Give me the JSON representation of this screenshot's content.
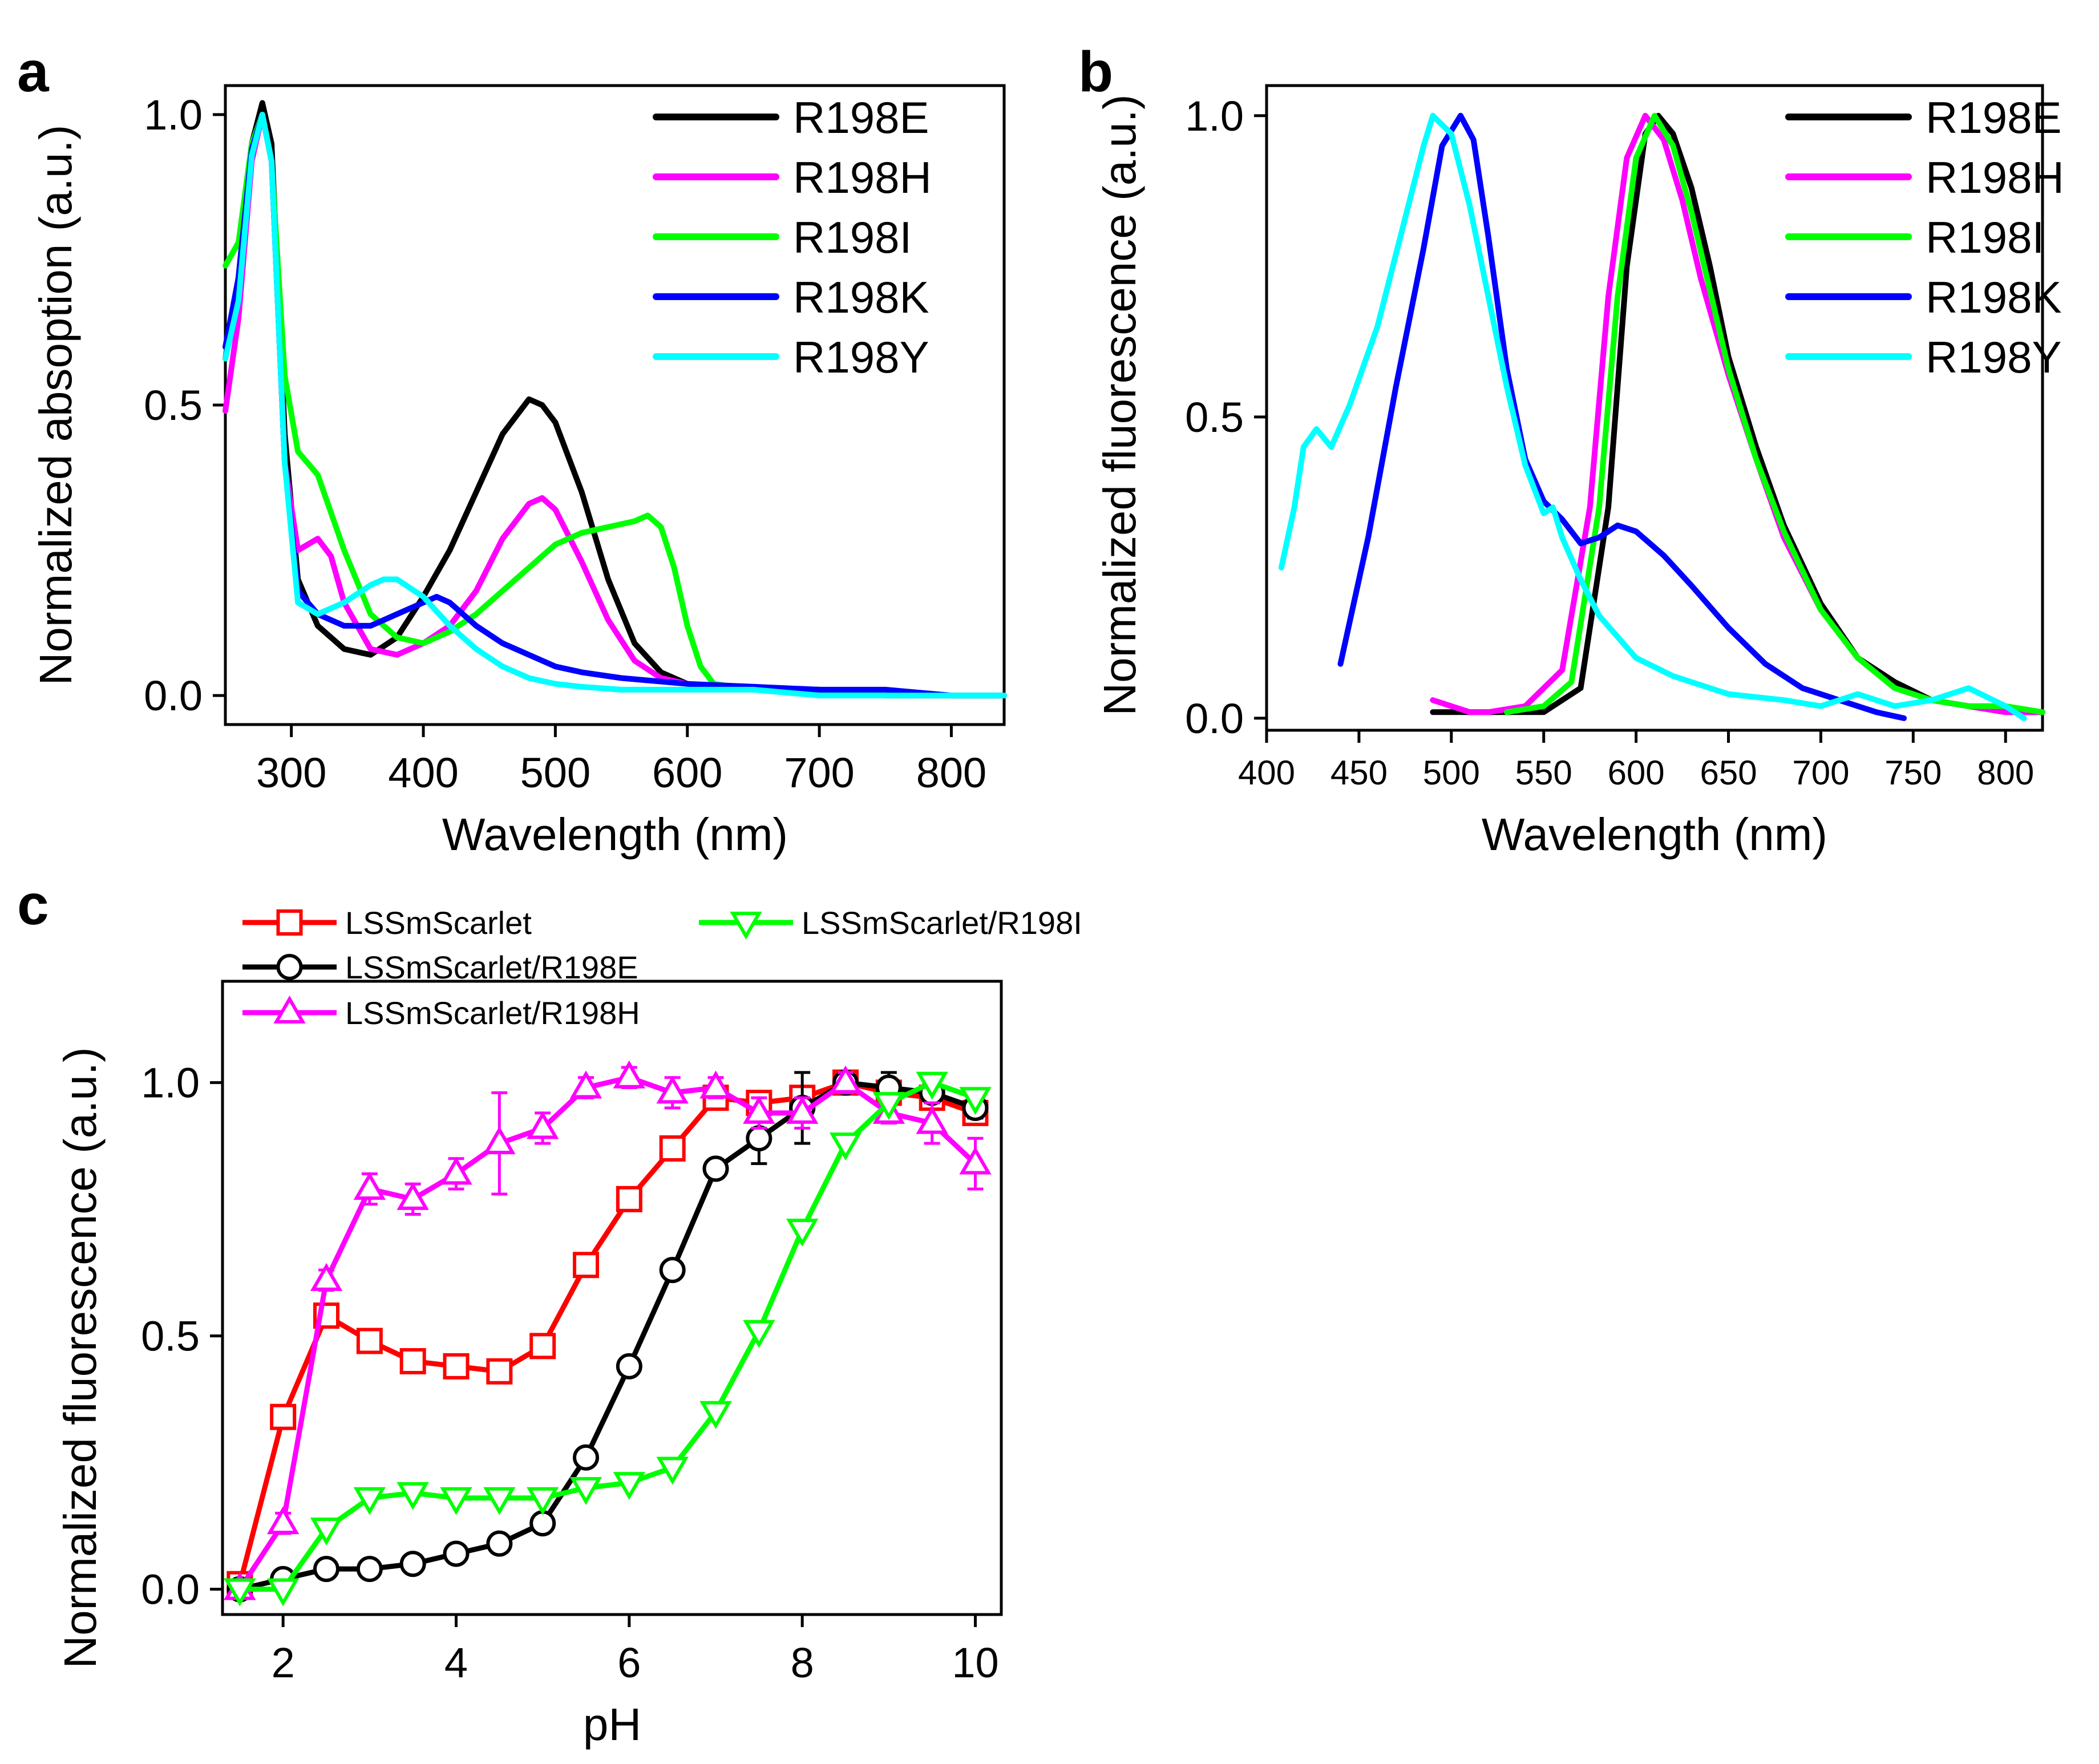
{
  "figure": {
    "panels": [
      "a",
      "b",
      "c"
    ]
  },
  "chart_data": [
    {
      "id": "a",
      "type": "line",
      "panel_label": "a",
      "xlabel": "Wavelength (nm)",
      "ylabel": "Normalized absoption (a.u.)",
      "xlim": [
        250,
        840
      ],
      "ylim": [
        -0.05,
        1.05
      ],
      "xticks": [
        300,
        400,
        500,
        600,
        700,
        800
      ],
      "yticks": [
        0.0,
        0.5,
        1.0
      ],
      "xtick_labels": [
        "300",
        "400",
        "500",
        "600",
        "700",
        "800"
      ],
      "ytick_labels": [
        "0.0",
        "0.5",
        "1.0"
      ],
      "legend_position": "top-right",
      "series": [
        {
          "name": "R198E",
          "color": "#000000",
          "x": [
            250,
            260,
            270,
            278,
            285,
            295,
            305,
            320,
            340,
            360,
            380,
            400,
            420,
            440,
            460,
            480,
            490,
            500,
            520,
            540,
            560,
            580,
            600,
            650,
            700,
            750,
            800,
            840
          ],
          "y": [
            0.58,
            0.72,
            0.95,
            1.02,
            0.95,
            0.45,
            0.2,
            0.12,
            0.08,
            0.07,
            0.1,
            0.17,
            0.25,
            0.35,
            0.45,
            0.51,
            0.5,
            0.47,
            0.35,
            0.2,
            0.09,
            0.04,
            0.02,
            0.01,
            0.01,
            0.0,
            0.0,
            0.0
          ]
        },
        {
          "name": "R198H",
          "color": "#ff00ff",
          "x": [
            250,
            260,
            270,
            278,
            285,
            295,
            305,
            320,
            330,
            340,
            360,
            380,
            400,
            420,
            440,
            460,
            480,
            490,
            500,
            520,
            540,
            560,
            580,
            600,
            650,
            700,
            750,
            800,
            840
          ],
          "y": [
            0.49,
            0.65,
            0.92,
            1.0,
            0.92,
            0.4,
            0.25,
            0.27,
            0.24,
            0.16,
            0.08,
            0.07,
            0.09,
            0.12,
            0.18,
            0.27,
            0.33,
            0.34,
            0.32,
            0.23,
            0.13,
            0.06,
            0.03,
            0.02,
            0.01,
            0.01,
            0.0,
            0.0,
            0.0
          ]
        },
        {
          "name": "R198I",
          "color": "#00ff00",
          "x": [
            250,
            260,
            270,
            278,
            285,
            295,
            305,
            320,
            340,
            360,
            380,
            400,
            420,
            440,
            460,
            480,
            500,
            520,
            540,
            560,
            570,
            580,
            590,
            600,
            610,
            620,
            650,
            700,
            750,
            800,
            840
          ],
          "y": [
            0.74,
            0.78,
            0.95,
            1.0,
            0.92,
            0.55,
            0.42,
            0.38,
            0.25,
            0.14,
            0.1,
            0.09,
            0.11,
            0.14,
            0.18,
            0.22,
            0.26,
            0.28,
            0.29,
            0.3,
            0.31,
            0.29,
            0.22,
            0.12,
            0.05,
            0.02,
            0.01,
            0.01,
            0.0,
            0.0,
            0.0
          ]
        },
        {
          "name": "R198K",
          "color": "#0000ff",
          "x": [
            250,
            260,
            270,
            278,
            285,
            295,
            305,
            320,
            340,
            360,
            380,
            400,
            410,
            420,
            440,
            460,
            480,
            500,
            520,
            550,
            600,
            650,
            700,
            750,
            800,
            840
          ],
          "y": [
            0.6,
            0.72,
            0.94,
            1.0,
            0.92,
            0.4,
            0.18,
            0.14,
            0.12,
            0.12,
            0.14,
            0.16,
            0.17,
            0.16,
            0.12,
            0.09,
            0.07,
            0.05,
            0.04,
            0.03,
            0.02,
            0.015,
            0.01,
            0.01,
            0.0,
            0.0
          ]
        },
        {
          "name": "R198Y",
          "color": "#00ffff",
          "x": [
            250,
            260,
            270,
            278,
            285,
            295,
            305,
            320,
            340,
            360,
            370,
            380,
            400,
            420,
            440,
            460,
            480,
            500,
            520,
            550,
            600,
            650,
            700,
            750,
            800,
            840
          ],
          "y": [
            0.58,
            0.68,
            0.93,
            1.0,
            0.92,
            0.4,
            0.16,
            0.14,
            0.16,
            0.19,
            0.2,
            0.2,
            0.17,
            0.12,
            0.08,
            0.05,
            0.03,
            0.02,
            0.015,
            0.01,
            0.01,
            0.01,
            0.0,
            0.0,
            0.0,
            0.0
          ]
        }
      ]
    },
    {
      "id": "b",
      "type": "line",
      "panel_label": "b",
      "xlabel": "Wavelength (nm)",
      "ylabel": "Normalized fluorescence (a.u.)",
      "xlim": [
        400,
        820
      ],
      "ylim": [
        -0.02,
        1.05
      ],
      "xticks": [
        400,
        450,
        500,
        550,
        600,
        650,
        700,
        750,
        800
      ],
      "yticks": [
        0.0,
        0.5,
        1.0
      ],
      "xtick_labels": [
        "400",
        "450",
        "500",
        "550",
        "600",
        "650",
        "700",
        "750",
        "800"
      ],
      "ytick_labels": [
        "0.0",
        "0.5",
        "1.0"
      ],
      "legend_position": "top-right",
      "series": [
        {
          "name": "R198E",
          "color": "#000000",
          "x": [
            490,
            520,
            550,
            570,
            585,
            595,
            605,
            612,
            620,
            630,
            640,
            650,
            665,
            680,
            700,
            720,
            740,
            760,
            780,
            800,
            820
          ],
          "y": [
            0.01,
            0.01,
            0.01,
            0.05,
            0.35,
            0.75,
            0.97,
            1.0,
            0.97,
            0.88,
            0.75,
            0.6,
            0.45,
            0.32,
            0.19,
            0.1,
            0.06,
            0.03,
            0.02,
            0.01,
            0.01
          ]
        },
        {
          "name": "R198H",
          "color": "#ff00ff",
          "x": [
            490,
            500,
            510,
            520,
            540,
            560,
            575,
            585,
            595,
            605,
            615,
            625,
            635,
            650,
            665,
            680,
            700,
            720,
            740,
            760,
            780,
            800,
            820
          ],
          "y": [
            0.03,
            0.02,
            0.01,
            0.01,
            0.02,
            0.08,
            0.35,
            0.7,
            0.93,
            1.0,
            0.96,
            0.86,
            0.73,
            0.57,
            0.43,
            0.3,
            0.18,
            0.1,
            0.05,
            0.03,
            0.02,
            0.01,
            0.01
          ]
        },
        {
          "name": "R198I",
          "color": "#00ff00",
          "x": [
            530,
            550,
            565,
            580,
            590,
            600,
            610,
            620,
            630,
            640,
            650,
            665,
            680,
            700,
            720,
            740,
            760,
            780,
            800,
            820
          ],
          "y": [
            0.01,
            0.02,
            0.06,
            0.35,
            0.7,
            0.93,
            1.0,
            0.95,
            0.84,
            0.71,
            0.58,
            0.43,
            0.31,
            0.18,
            0.1,
            0.05,
            0.03,
            0.02,
            0.02,
            0.01
          ]
        },
        {
          "name": "R198K",
          "color": "#0000ff",
          "x": [
            440,
            455,
            470,
            485,
            495,
            505,
            512,
            520,
            530,
            540,
            550,
            560,
            570,
            580,
            590,
            600,
            615,
            630,
            650,
            670,
            690,
            710,
            730,
            745
          ],
          "y": [
            0.09,
            0.3,
            0.55,
            0.78,
            0.95,
            1.0,
            0.96,
            0.8,
            0.58,
            0.43,
            0.36,
            0.33,
            0.29,
            0.3,
            0.32,
            0.31,
            0.27,
            0.22,
            0.15,
            0.09,
            0.05,
            0.03,
            0.01,
            0.0
          ]
        },
        {
          "name": "R198Y",
          "color": "#00ffff",
          "x": [
            408,
            415,
            420,
            427,
            435,
            445,
            460,
            475,
            485,
            490,
            500,
            510,
            520,
            530,
            540,
            550,
            555,
            560,
            570,
            580,
            600,
            620,
            650,
            680,
            700,
            720,
            740,
            760,
            780,
            800,
            810
          ],
          "y": [
            0.25,
            0.35,
            0.45,
            0.48,
            0.45,
            0.52,
            0.65,
            0.83,
            0.95,
            1.0,
            0.97,
            0.85,
            0.7,
            0.55,
            0.42,
            0.34,
            0.35,
            0.3,
            0.23,
            0.17,
            0.1,
            0.07,
            0.04,
            0.03,
            0.02,
            0.04,
            0.02,
            0.03,
            0.05,
            0.02,
            0.0
          ]
        }
      ]
    },
    {
      "id": "c",
      "type": "line",
      "panel_label": "c",
      "xlabel": "pH",
      "ylabel": "Normalized fluorescence (a.u.)",
      "xlim": [
        1.3,
        10.3
      ],
      "ylim": [
        -0.05,
        1.2
      ],
      "xticks": [
        2,
        4,
        6,
        8,
        10
      ],
      "yticks": [
        0.0,
        0.5,
        1.0
      ],
      "xtick_labels": [
        "2",
        "4",
        "6",
        "8",
        "10"
      ],
      "ytick_labels": [
        "0.0",
        "0.5",
        "1.0"
      ],
      "legend_position": "top",
      "x": [
        1.5,
        2.0,
        2.5,
        3.0,
        3.5,
        4.0,
        4.5,
        5.0,
        5.5,
        6.0,
        6.5,
        7.0,
        7.5,
        8.0,
        8.5,
        9.0,
        9.5,
        10.0
      ],
      "series": [
        {
          "name": "LSSmScarlet",
          "color": "#ff0000",
          "marker": "square",
          "y": [
            0.01,
            0.34,
            0.54,
            0.49,
            0.45,
            0.44,
            0.43,
            0.48,
            0.64,
            0.77,
            0.87,
            0.97,
            0.96,
            0.97,
            1.0,
            0.98,
            0.97,
            0.94
          ],
          "err": [
            0,
            0.01,
            0.01,
            0.01,
            0.01,
            0.01,
            0.01,
            0.01,
            0.01,
            0.01,
            0.01,
            0.01,
            0.01,
            0.01,
            0.01,
            0.01,
            0.01,
            0.01
          ]
        },
        {
          "name": "LSSmScarlet/R198E",
          "color": "#000000",
          "marker": "circle",
          "y": [
            0.0,
            0.02,
            0.04,
            0.04,
            0.05,
            0.07,
            0.09,
            0.13,
            0.26,
            0.44,
            0.63,
            0.83,
            0.89,
            0.95,
            1.0,
            0.99,
            0.98,
            0.95
          ],
          "err": [
            0,
            0.01,
            0.01,
            0.01,
            0.01,
            0.01,
            0.01,
            0.01,
            0.01,
            0.01,
            0.01,
            0.01,
            0.05,
            0.07,
            0.02,
            0.03,
            0.02,
            0.02
          ]
        },
        {
          "name": "LSSmScarlet/R198H",
          "color": "#ff00ff",
          "marker": "triangle-up",
          "y": [
            0.0,
            0.13,
            0.61,
            0.79,
            0.77,
            0.82,
            0.88,
            0.91,
            0.99,
            1.01,
            0.98,
            0.99,
            0.94,
            0.94,
            1.0,
            0.94,
            0.92,
            0.84
          ],
          "err": [
            0,
            0.02,
            0.02,
            0.03,
            0.03,
            0.03,
            0.1,
            0.03,
            0.02,
            0.02,
            0.03,
            0.02,
            0.03,
            0.03,
            0.02,
            0.02,
            0.04,
            0.05
          ]
        },
        {
          "name": "LSSmScarlet/R198I",
          "color": "#00ff00",
          "marker": "triangle-down",
          "y": [
            0.0,
            0.0,
            0.12,
            0.18,
            0.19,
            0.18,
            0.18,
            0.18,
            0.2,
            0.21,
            0.24,
            0.35,
            0.51,
            0.71,
            0.88,
            0.96,
            1.0,
            0.97
          ],
          "err": [
            0,
            0,
            0.01,
            0.01,
            0.01,
            0.01,
            0.01,
            0.01,
            0.01,
            0.01,
            0.01,
            0.01,
            0.01,
            0.01,
            0.01,
            0.01,
            0.01,
            0.01
          ]
        }
      ]
    }
  ]
}
